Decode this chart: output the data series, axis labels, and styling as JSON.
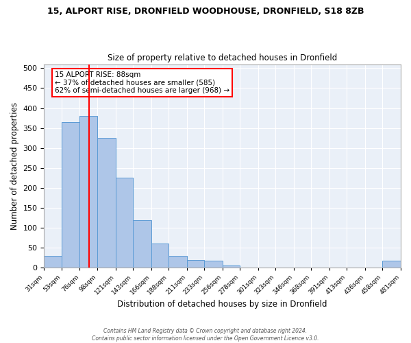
{
  "title1": "15, ALPORT RISE, DRONFIELD WOODHOUSE, DRONFIELD, S18 8ZB",
  "title2": "Size of property relative to detached houses in Dronfield",
  "xlabel": "Distribution of detached houses by size in Dronfield",
  "ylabel": "Number of detached properties",
  "bin_edges": [
    31,
    53,
    76,
    98,
    121,
    143,
    166,
    188,
    211,
    233,
    256,
    278,
    301,
    323,
    346,
    368,
    391,
    413,
    436,
    458,
    481
  ],
  "bar_heights": [
    30,
    365,
    380,
    325,
    225,
    120,
    60,
    30,
    20,
    17,
    5,
    0,
    0,
    0,
    0,
    0,
    0,
    0,
    0,
    17
  ],
  "bar_color": "#aec6e8",
  "bar_edgecolor": "#5b9bd5",
  "vline_x": 88,
  "vline_color": "red",
  "annotation_text": "15 ALPORT RISE: 88sqm\n← 37% of detached houses are smaller (585)\n62% of semi-detached houses are larger (968) →",
  "annotation_box_color": "white",
  "annotation_box_edgecolor": "red",
  "ylim": [
    0,
    510
  ],
  "xlim": [
    31,
    481
  ],
  "bg_color": "#eaf0f8",
  "grid_color": "white",
  "footer_text": "Contains HM Land Registry data © Crown copyright and database right 2024.\nContains public sector information licensed under the Open Government Licence v3.0.",
  "tick_labels": [
    "31sqm",
    "53sqm",
    "76sqm",
    "98sqm",
    "121sqm",
    "143sqm",
    "166sqm",
    "188sqm",
    "211sqm",
    "233sqm",
    "256sqm",
    "278sqm",
    "301sqm",
    "323sqm",
    "346sqm",
    "368sqm",
    "391sqm",
    "413sqm",
    "436sqm",
    "458sqm",
    "481sqm"
  ],
  "yticks": [
    0,
    50,
    100,
    150,
    200,
    250,
    300,
    350,
    400,
    450,
    500
  ]
}
